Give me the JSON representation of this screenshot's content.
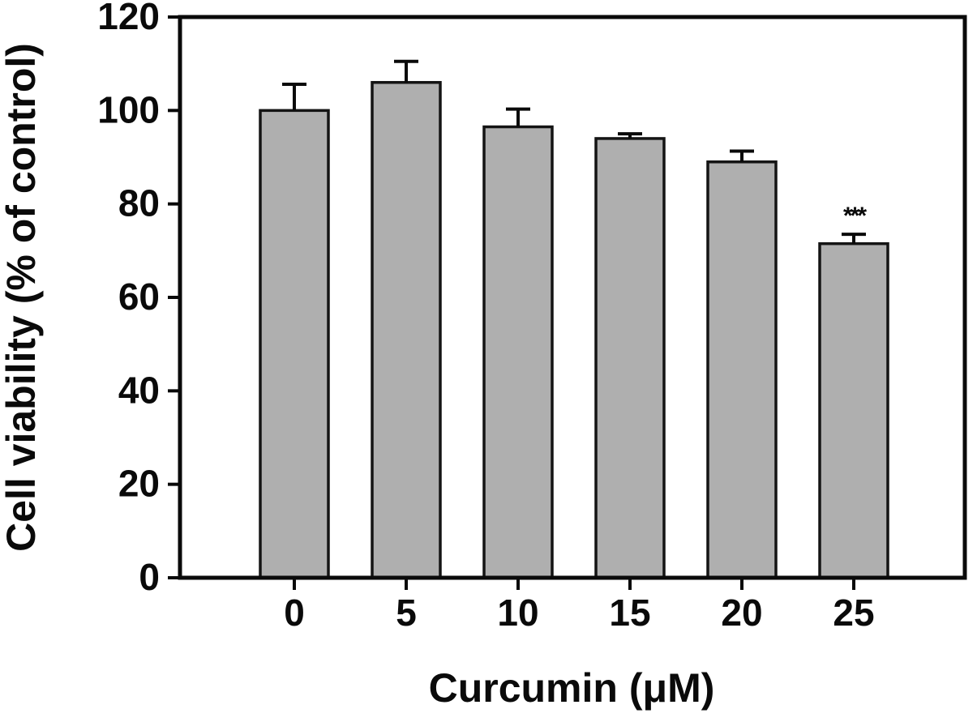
{
  "chart_data": {
    "type": "bar",
    "title": "",
    "xlabel": "Curcumin (μM)",
    "ylabel": "Cell viability (% of control)",
    "categories": [
      "0",
      "5",
      "10",
      "15",
      "20",
      "25"
    ],
    "values": [
      100,
      106,
      96.5,
      94,
      89,
      71.5
    ],
    "errors": [
      5.6,
      4.5,
      3.8,
      1.0,
      2.3,
      2.0
    ],
    "error_direction": "upper-only",
    "annotations": [
      {
        "category": "25",
        "text": "***"
      }
    ],
    "ylim": [
      0,
      120
    ],
    "yticks": [
      0,
      20,
      40,
      60,
      80,
      100,
      120
    ],
    "grid": false,
    "legend": "none",
    "colors": {
      "bar_fill": "#afafaf",
      "bar_stroke": "#141414",
      "axis_stroke": "#0a0a0a",
      "background": "#ffffff",
      "text": "#0a0a0a"
    }
  }
}
